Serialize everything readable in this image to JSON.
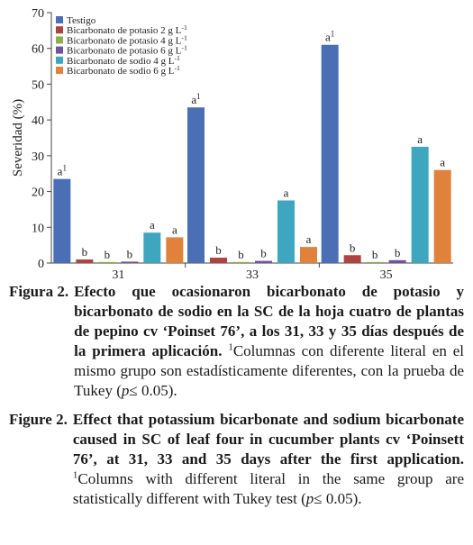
{
  "chart_data": {
    "type": "bar",
    "ylabel": "Severidad (%)",
    "ylim": [
      0,
      70
    ],
    "yticks": [
      0,
      10,
      20,
      30,
      40,
      50,
      60,
      70
    ],
    "categories": [
      "31",
      "33",
      "35"
    ],
    "legend_position": "top-left",
    "series": [
      {
        "name": "Testigo",
        "color": "#4a6fb5",
        "values": [
          23.5,
          43.5,
          61
        ],
        "labels": [
          "a1",
          "a1",
          "a1"
        ]
      },
      {
        "name": "Bicarbonato de potasio 2 g L-1",
        "color": "#b0433f",
        "values": [
          1,
          1.5,
          2.2
        ],
        "labels": [
          "b",
          "b",
          "b"
        ]
      },
      {
        "name": "Bicarbonato de potasio 4 g L-1",
        "color": "#8db04a",
        "values": [
          0.3,
          0.3,
          0.3
        ],
        "labels": [
          "b",
          "b",
          "b"
        ]
      },
      {
        "name": "Bicarbonato de potasio 6 g L-1",
        "color": "#6e53a3",
        "values": [
          0.4,
          0.6,
          0.8
        ],
        "labels": [
          "b",
          "b",
          "b"
        ]
      },
      {
        "name": "Bicarbonato de sodio  4 g L-1",
        "color": "#3ea6bf",
        "values": [
          8.5,
          17.5,
          32.5
        ],
        "labels": [
          "a",
          "a",
          "a"
        ]
      },
      {
        "name": "Bicarbonato de sodio 6 g L-1",
        "color": "#e0823c",
        "values": [
          7.2,
          4.5,
          26
        ],
        "labels": [
          "a",
          "a",
          "a"
        ]
      }
    ]
  },
  "caption_es": {
    "label": "Figura 2.",
    "bold_text": "Efecto que ocasionaron bicarbonato de potasio y bicarbonato de sodio en la SC de la hoja cuatro de plantas de pepino cv ‘Poinset 76’, a los 31, 33 y 35 días después de la primera aplicación.",
    "sup": "1",
    "text_a": "Columnas con diferente literal en el mismo grupo son estadísticamente diferentes, con la prueba de Tukey (",
    "p": "p",
    "text_b": "≤ 0.05)."
  },
  "caption_en": {
    "label": "Figure 2.",
    "bold_text": "Effect that potassium bicarbonate and sodium bicarbonate caused in SC of leaf four in cucumber plants cv ‘Poinsett 76’, at 31, 33 and 35 days after the first application.",
    "sup": "1",
    "text_a": "Columns with different literal in the same group are statistically different with Tukey test (",
    "p": "p",
    "text_b": "≤ 0.05)."
  }
}
